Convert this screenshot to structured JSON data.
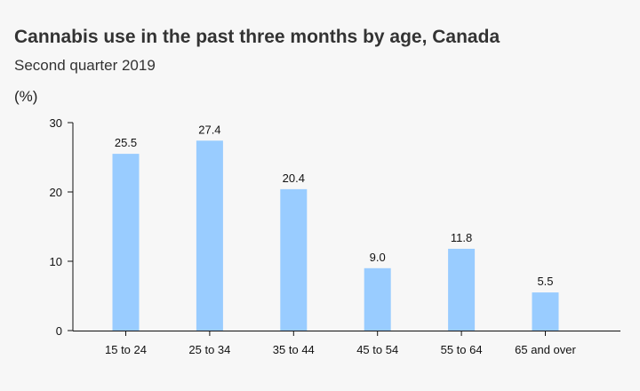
{
  "chart_data": {
    "type": "bar",
    "title": "Cannabis use in the past three months by age, Canada",
    "subtitle": "Second quarter 2019",
    "ylabel": "(%)",
    "xlabel": "",
    "categories": [
      "15 to 24",
      "25 to 34",
      "35 to 44",
      "45 to 54",
      "55 to 64",
      "65 and over"
    ],
    "values": [
      25.5,
      27.4,
      20.4,
      9.0,
      11.8,
      5.5
    ],
    "value_labels": [
      "25.5",
      "27.4",
      "20.4",
      "9.0",
      "11.8",
      "5.5"
    ],
    "ylim": [
      0,
      30
    ],
    "yticks": [
      "0",
      "10",
      "20",
      "30"
    ],
    "grid": false,
    "legend": "none",
    "bar_color": "#99ccff",
    "axis_color": "#111111",
    "background": "#f7f7f7"
  }
}
